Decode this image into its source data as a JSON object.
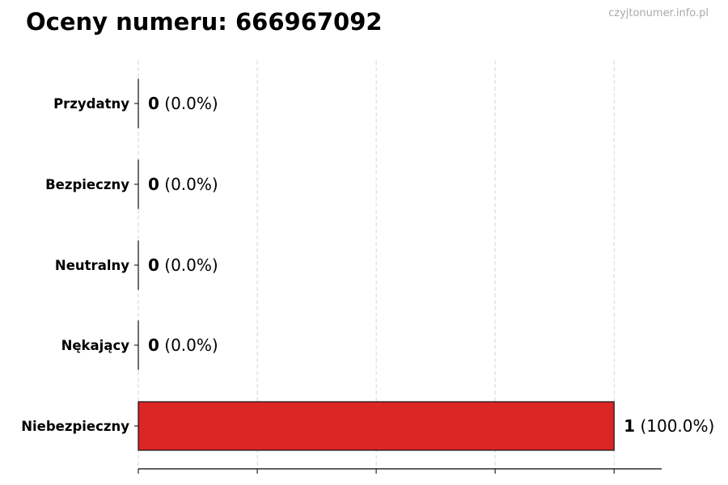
{
  "chart_data": {
    "type": "bar",
    "orientation": "horizontal",
    "title": "Oceny numeru: 666967092",
    "watermark": "czyjtonumer.info.pl",
    "categories": [
      "Przydatny",
      "Bezpieczny",
      "Neutralny",
      "Nękający",
      "Niebezpieczny"
    ],
    "values": [
      0,
      0,
      0,
      0,
      1
    ],
    "value_labels": [
      "0",
      "0",
      "0",
      "0",
      "1"
    ],
    "percent_labels": [
      "(0.0%)",
      "(0.0%)",
      "(0.0%)",
      "(0.0%)",
      "(100.0%)"
    ],
    "xlim": [
      0,
      1.1
    ],
    "xticks": [
      0,
      0.25,
      0.5,
      0.75,
      1.0
    ],
    "grid": "vertical-dashed",
    "bar_color": "#dc2626",
    "xlabel": "",
    "ylabel": ""
  }
}
